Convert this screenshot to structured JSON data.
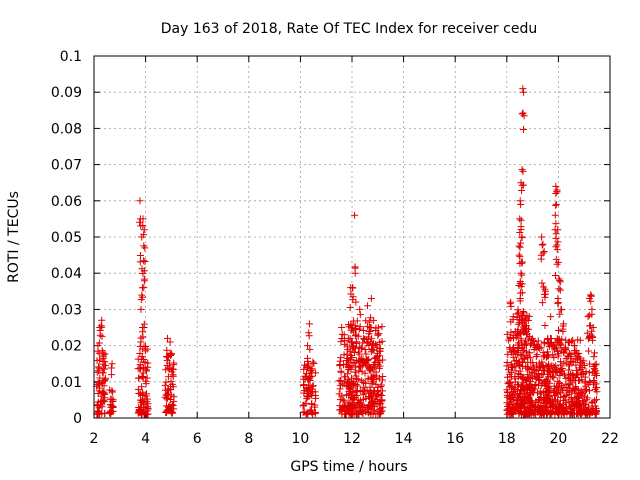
{
  "chart_data": {
    "type": "scatter",
    "title": "Day 163 of 2018, Rate Of TEC Index for receiver cedu",
    "xlabel": "GPS time / hours",
    "ylabel": "ROTI / TECUs",
    "xlim": [
      2,
      22
    ],
    "ylim": [
      0,
      0.1
    ],
    "xticks": [
      2,
      4,
      6,
      8,
      10,
      12,
      14,
      16,
      18,
      20,
      22
    ],
    "yticks": [
      0,
      0.01,
      0.02,
      0.03,
      0.04,
      0.05,
      0.06,
      0.07,
      0.08,
      0.09,
      0.1
    ],
    "xtick_labels": [
      "2",
      "4",
      "6",
      "8",
      "10",
      "12",
      "14",
      "16",
      "18",
      "20",
      "22"
    ],
    "ytick_labels": [
      "0",
      "0.01",
      "0.02",
      "0.03",
      "0.04",
      "0.05",
      "0.06",
      "0.07",
      "0.08",
      "0.09",
      "0.1"
    ],
    "grid": true,
    "marker": "+",
    "color": "#e00000",
    "clusters": [
      {
        "x_start": 2.1,
        "x_end": 2.45,
        "count": 60,
        "base_max": 0.018,
        "peaks": [
          [
            2.15,
            0.02
          ],
          [
            2.22,
            0.025
          ],
          [
            2.3,
            0.027
          ],
          [
            2.35,
            0.018
          ]
        ]
      },
      {
        "x_start": 2.6,
        "x_end": 2.75,
        "count": 20,
        "base_max": 0.008,
        "peaks": [
          [
            2.7,
            0.015
          ]
        ]
      },
      {
        "x_start": 3.7,
        "x_end": 4.1,
        "count": 80,
        "base_max": 0.02,
        "peaks": [
          [
            3.78,
            0.06
          ],
          [
            3.8,
            0.055
          ],
          [
            3.85,
            0.05
          ],
          [
            3.9,
            0.055
          ],
          [
            3.95,
            0.052
          ],
          [
            3.97,
            0.047
          ],
          [
            3.93,
            0.036
          ],
          [
            3.82,
            0.03
          ],
          [
            3.88,
            0.025
          ]
        ]
      },
      {
        "x_start": 4.75,
        "x_end": 5.1,
        "count": 60,
        "base_max": 0.018,
        "peaks": [
          [
            4.85,
            0.022
          ],
          [
            4.95,
            0.021
          ]
        ]
      },
      {
        "x_start": 10.1,
        "x_end": 10.6,
        "count": 70,
        "base_max": 0.016,
        "peaks": [
          [
            10.35,
            0.026
          ],
          [
            10.28,
            0.02
          ]
        ]
      },
      {
        "x_start": 11.5,
        "x_end": 11.85,
        "count": 50,
        "base_max": 0.02,
        "peaks": [
          [
            11.6,
            0.025
          ],
          [
            11.7,
            0.023
          ]
        ]
      },
      {
        "x_start": 11.85,
        "x_end": 13.2,
        "count": 320,
        "base_max": 0.027,
        "peaks": [
          [
            11.95,
            0.036
          ],
          [
            12.02,
            0.036
          ],
          [
            12.1,
            0.056
          ],
          [
            12.15,
            0.032
          ],
          [
            12.3,
            0.03
          ],
          [
            12.6,
            0.031
          ],
          [
            12.75,
            0.033
          ]
        ]
      },
      {
        "x_start": 18.0,
        "x_end": 18.4,
        "count": 100,
        "base_max": 0.024,
        "peaks": [
          [
            18.15,
            0.032
          ],
          [
            18.25,
            0.028
          ]
        ]
      },
      {
        "x_start": 18.4,
        "x_end": 18.9,
        "count": 200,
        "base_max": 0.03,
        "peaks": [
          [
            18.62,
            0.091
          ],
          [
            18.65,
            0.09
          ],
          [
            18.6,
            0.084
          ],
          [
            18.55,
            0.065
          ],
          [
            18.52,
            0.06
          ],
          [
            18.5,
            0.055
          ],
          [
            18.58,
            0.05
          ],
          [
            18.48,
            0.045
          ],
          [
            18.55,
            0.04
          ],
          [
            18.6,
            0.037
          ],
          [
            18.52,
            0.033
          ]
        ]
      },
      {
        "x_start": 18.9,
        "x_end": 20.9,
        "count": 480,
        "base_max": 0.022,
        "peaks": [
          [
            19.35,
            0.05
          ],
          [
            19.4,
            0.048
          ],
          [
            19.45,
            0.046
          ],
          [
            19.5,
            0.035
          ],
          [
            19.9,
            0.064
          ],
          [
            19.95,
            0.063
          ],
          [
            19.92,
            0.059
          ],
          [
            19.88,
            0.056
          ],
          [
            19.97,
            0.052
          ],
          [
            20.0,
            0.043
          ],
          [
            20.05,
            0.038
          ],
          [
            19.98,
            0.033
          ],
          [
            20.1,
            0.03
          ],
          [
            19.7,
            0.028
          ],
          [
            20.2,
            0.026
          ]
        ]
      },
      {
        "x_start": 20.9,
        "x_end": 21.5,
        "count": 90,
        "base_max": 0.016,
        "peaks": [
          [
            21.2,
            0.033
          ],
          [
            21.25,
            0.034
          ],
          [
            21.3,
            0.03
          ],
          [
            21.15,
            0.028
          ],
          [
            21.35,
            0.025
          ],
          [
            21.4,
            0.018
          ]
        ]
      }
    ]
  }
}
